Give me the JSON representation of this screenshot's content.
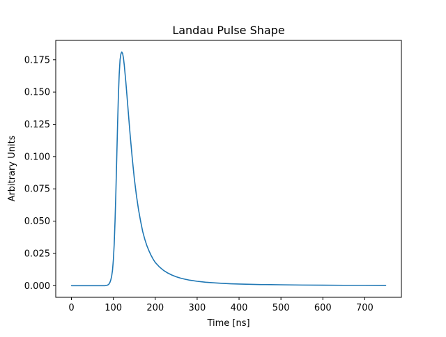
{
  "chart_data": {
    "type": "line",
    "title": "Landau Pulse Shape",
    "xlabel": "Time [ns]",
    "ylabel": "Arbitrary Units",
    "xlim": [
      -37.5,
      787.5
    ],
    "ylim": [
      -0.009,
      0.19
    ],
    "xticks": [
      0,
      100,
      200,
      300,
      400,
      500,
      600,
      700
    ],
    "yticks": [
      0.0,
      0.025,
      0.05,
      0.075,
      0.1,
      0.125,
      0.15,
      0.175
    ],
    "xtick_labels": [
      "0",
      "100",
      "200",
      "300",
      "400",
      "500",
      "600",
      "700"
    ],
    "ytick_labels": [
      "0.000",
      "0.025",
      "0.050",
      "0.075",
      "0.100",
      "0.125",
      "0.150",
      "0.175"
    ],
    "grid": false,
    "line_color": "#1f77b4",
    "series": [
      {
        "x": [
          0,
          20,
          40,
          60,
          80,
          85,
          88,
          90,
          92,
          94,
          96,
          98,
          100,
          102,
          104,
          106,
          108,
          110,
          112,
          114,
          116,
          118,
          120,
          122,
          124,
          126,
          128,
          130,
          132,
          134,
          136,
          138,
          140,
          145,
          150,
          155,
          160,
          165,
          170,
          175,
          180,
          185,
          190,
          195,
          200,
          210,
          220,
          230,
          240,
          250,
          260,
          270,
          280,
          290,
          300,
          320,
          340,
          360,
          380,
          400,
          450,
          500,
          550,
          600,
          650,
          700,
          750
        ],
        "y": [
          0.0,
          0.0,
          0.0,
          0.0,
          0.0,
          0.0003,
          0.0008,
          0.0015,
          0.0027,
          0.0046,
          0.0075,
          0.012,
          0.02,
          0.032,
          0.05,
          0.072,
          0.098,
          0.124,
          0.147,
          0.164,
          0.175,
          0.1795,
          0.181,
          0.18,
          0.1765,
          0.171,
          0.164,
          0.157,
          0.149,
          0.141,
          0.133,
          0.125,
          0.117,
          0.099,
          0.083,
          0.07,
          0.059,
          0.05,
          0.042,
          0.036,
          0.031,
          0.027,
          0.0235,
          0.0205,
          0.018,
          0.0145,
          0.0118,
          0.0098,
          0.0082,
          0.0069,
          0.0059,
          0.0051,
          0.0044,
          0.0039,
          0.0034,
          0.0027,
          0.0022,
          0.0018,
          0.0015,
          0.0013,
          0.0009,
          0.0007,
          0.0005,
          0.0004,
          0.0003,
          0.0003,
          0.0002
        ]
      }
    ]
  }
}
